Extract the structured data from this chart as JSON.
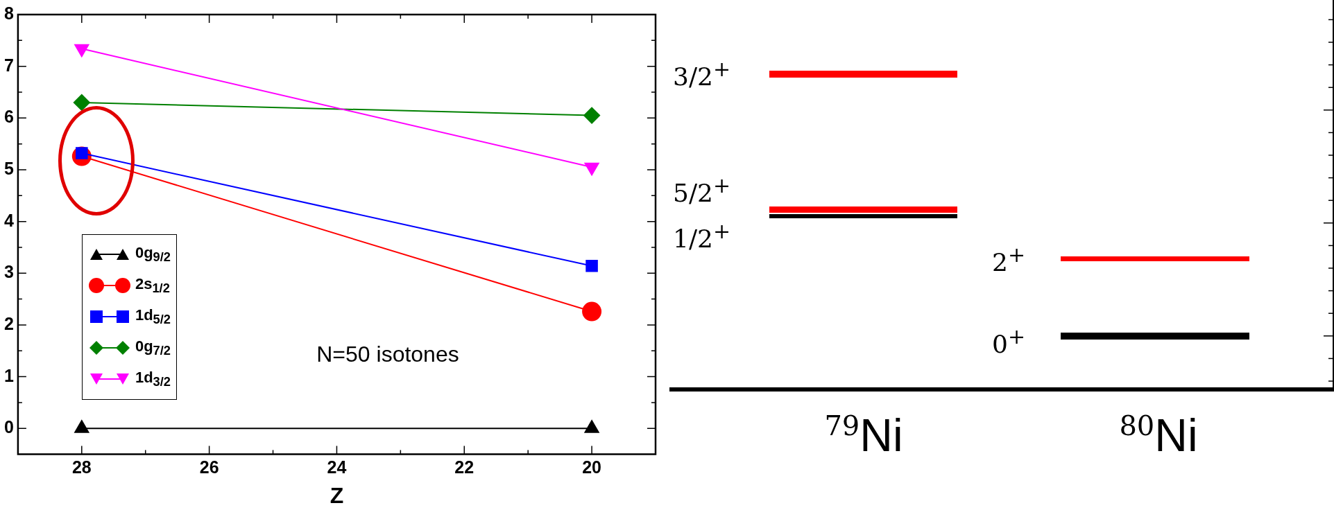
{
  "chart_data": [
    {
      "type": "line",
      "xlabel": "Z",
      "x": [
        28,
        20
      ],
      "xlim": [
        29,
        19
      ],
      "xticks": [
        28,
        {
          "value": 27,
          "label": null
        },
        26,
        {
          "value": 25,
          "label": null
        },
        24,
        {
          "value": 23,
          "label": null
        },
        22,
        {
          "value": 21,
          "label": null
        },
        20
      ],
      "ylim": [
        -0.5,
        8
      ],
      "yticks": [
        0,
        {
          "value": 0.5,
          "label": null
        },
        1,
        {
          "value": 1.5,
          "label": null
        },
        2,
        {
          "value": 2.5,
          "label": null
        },
        3,
        {
          "value": 3.5,
          "label": null
        },
        4,
        {
          "value": 4.5,
          "label": null
        },
        5,
        {
          "value": 5.5,
          "label": null
        },
        6,
        {
          "value": 6.5,
          "label": null
        },
        7,
        {
          "value": 7.5,
          "label": null
        },
        8
      ],
      "legend": "bottom left",
      "annotations": [
        "N=50 isotones"
      ],
      "series": [
        {
          "name": "0g$_{9/2}$",
          "color": "#000000",
          "marker": "triangle",
          "values": [
            0,
            0
          ]
        },
        {
          "name": "2s$_{1/2}$",
          "color": "#ff0000",
          "marker": "circle",
          "values": [
            5.26,
            2.26
          ]
        },
        {
          "name": "1d$_{5/2}$",
          "color": "#0000ff",
          "marker": "square",
          "values": [
            5.32,
            3.14
          ]
        },
        {
          "name": "0g$_{7/2}$",
          "color": "#008000",
          "marker": "diamond",
          "values": [
            6.3,
            6.05
          ]
        },
        {
          "name": "1d$_{3/2}$",
          "color": "#ff00ff",
          "marker": "triangle-down",
          "values": [
            7.34,
            5.05
          ]
        }
      ]
    },
    {
      "type": "other",
      "categories": [
        "$^{79}$Ni",
        "$^{80}$Ni"
      ],
      "annotations": [
        "3/2$^{+}$",
        "5/2$^{+}$",
        "1/2$^{+}$",
        "2$^{+}$",
        "0$^{+}$"
      ]
    }
  ]
}
